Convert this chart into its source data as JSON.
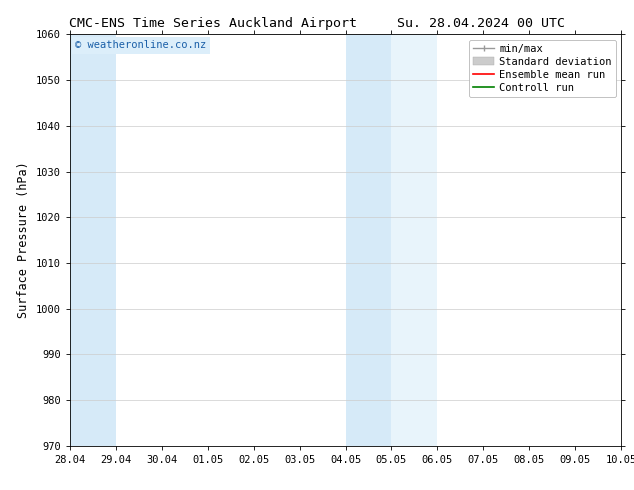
{
  "title_left": "CMC-ENS Time Series Auckland Airport",
  "title_right": "Su. 28.04.2024 00 UTC",
  "ylabel": "Surface Pressure (hPa)",
  "ylim": [
    970,
    1060
  ],
  "yticks": [
    970,
    980,
    990,
    1000,
    1010,
    1020,
    1030,
    1040,
    1050,
    1060
  ],
  "xtick_labels": [
    "28.04",
    "29.04",
    "30.04",
    "01.05",
    "02.05",
    "03.05",
    "04.05",
    "05.05",
    "06.05",
    "07.05",
    "08.05",
    "09.05",
    "10.05"
  ],
  "xtick_positions": [
    0,
    1,
    2,
    3,
    4,
    5,
    6,
    7,
    8,
    9,
    10,
    11,
    12
  ],
  "shaded_regions": [
    {
      "x_start": 0,
      "x_end": 1,
      "color": "#d6eaf8"
    },
    {
      "x_start": 6,
      "x_end": 7,
      "color": "#d6eaf8"
    },
    {
      "x_start": 7,
      "x_end": 8,
      "color": "#e8f4fb"
    }
  ],
  "watermark_text": "© weatheronline.co.nz",
  "watermark_color": "#1a5fa8",
  "watermark_bg": "#dceefa",
  "legend_items": [
    {
      "label": "min/max",
      "color": "#999999"
    },
    {
      "label": "Standard deviation",
      "color": "#cccccc"
    },
    {
      "label": "Ensemble mean run",
      "color": "red"
    },
    {
      "label": "Controll run",
      "color": "green"
    }
  ],
  "bg_color": "#ffffff",
  "plot_bg_color": "#ffffff",
  "grid_color": "#cccccc",
  "title_fontsize": 9.5,
  "tick_fontsize": 7.5,
  "ylabel_fontsize": 8.5,
  "legend_fontsize": 7.5
}
